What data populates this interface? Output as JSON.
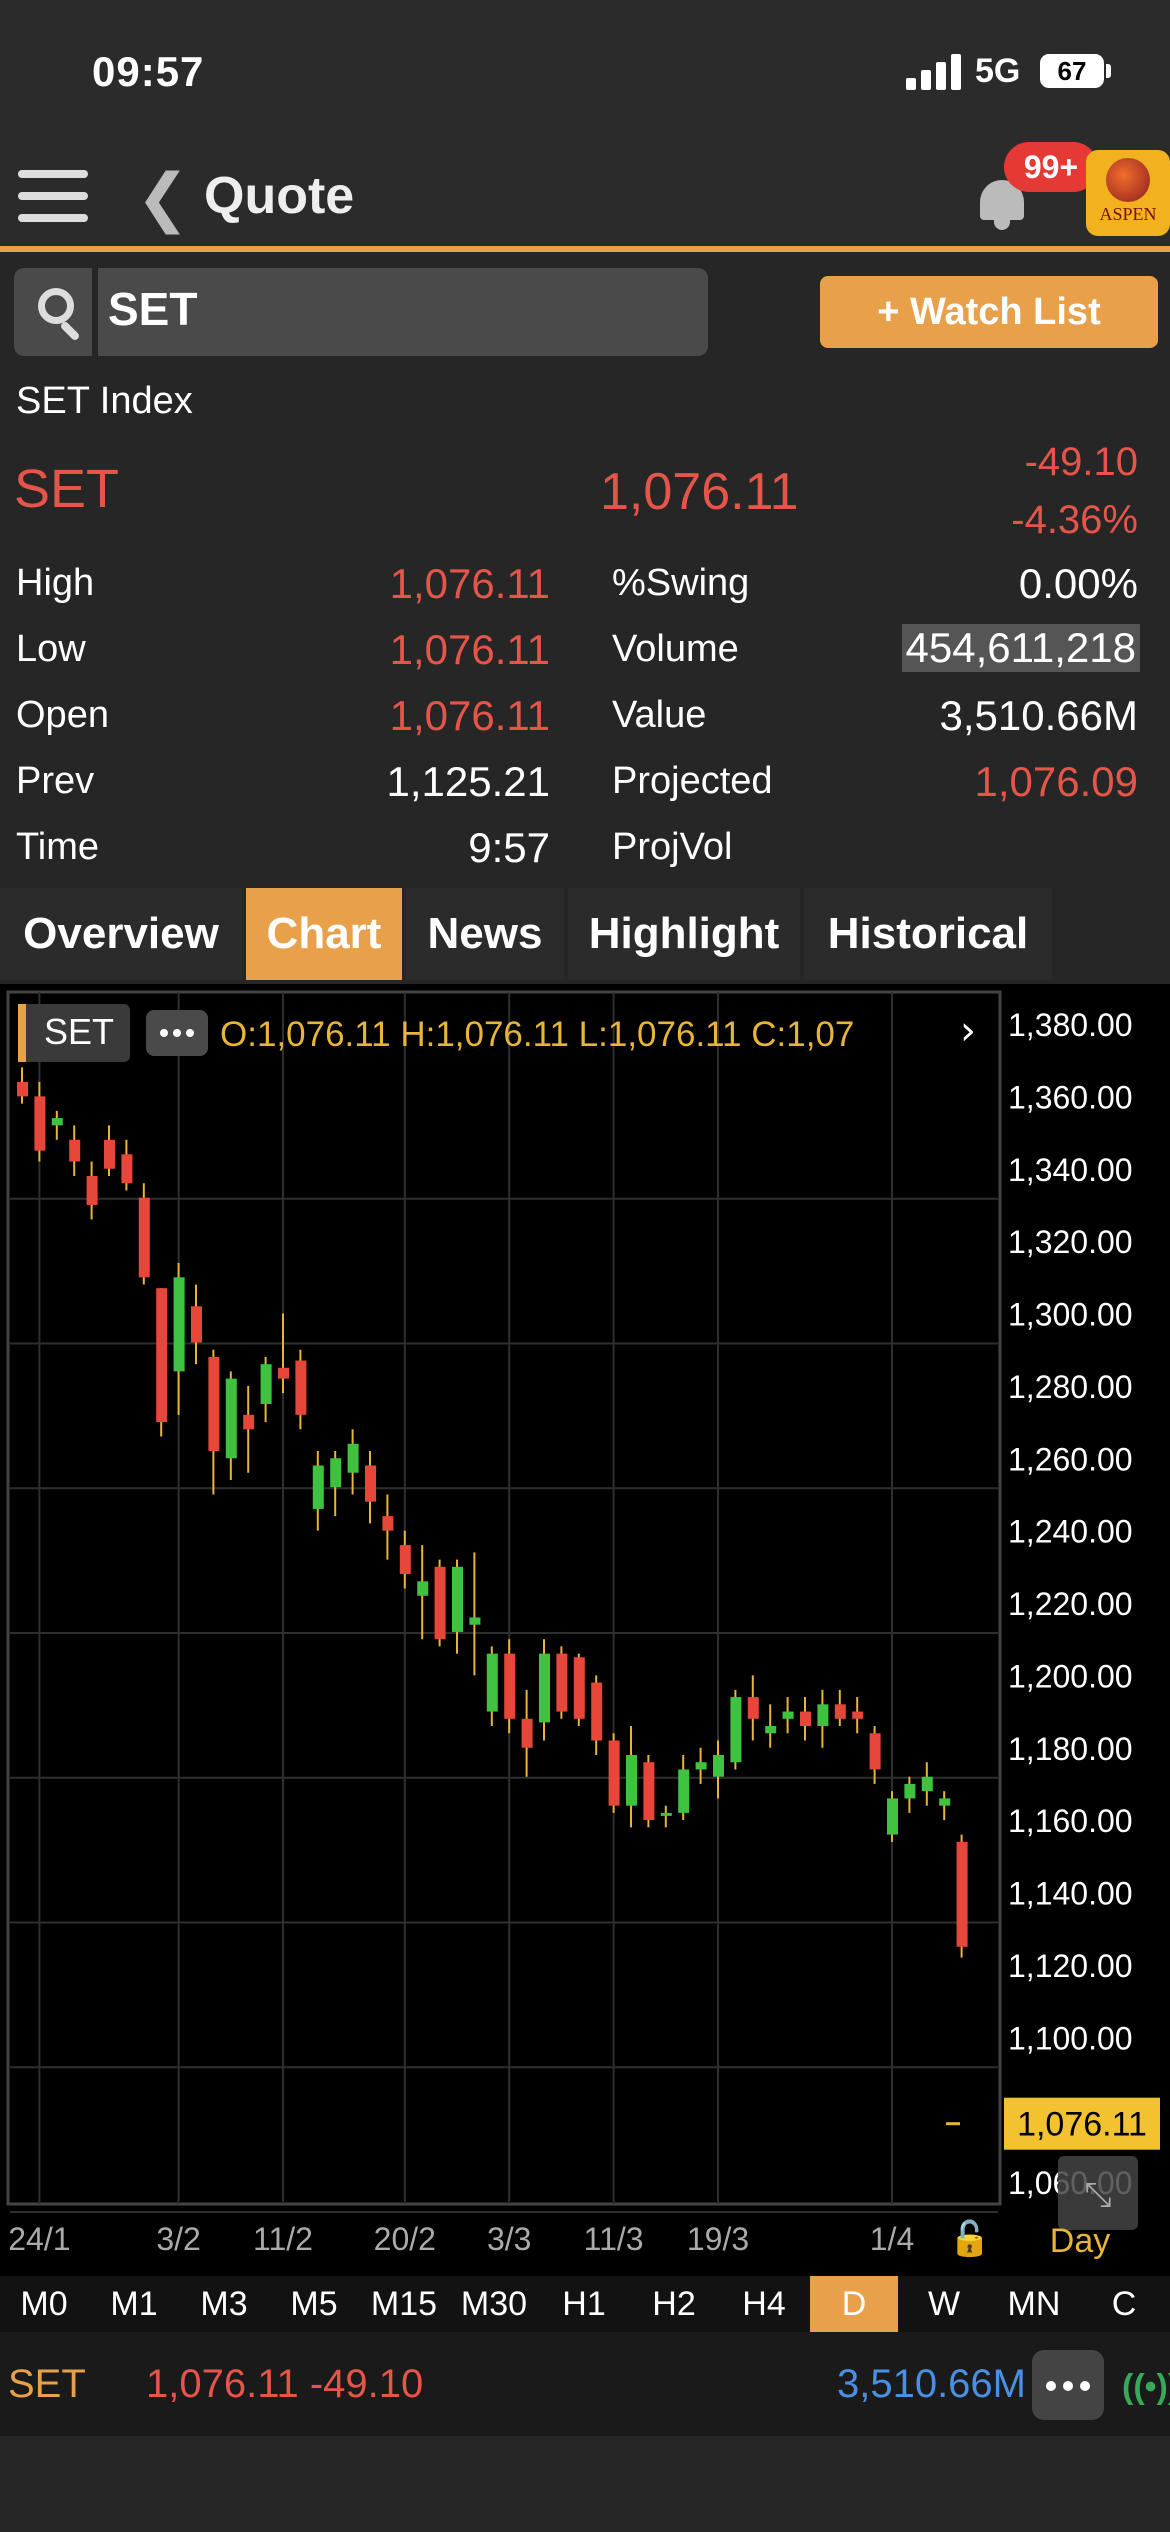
{
  "status_bar": {
    "time": "09:57",
    "network": "5G",
    "battery": "67"
  },
  "nav": {
    "title": "Quote",
    "notification_badge": "99+",
    "logo_text": "ASPEN"
  },
  "search": {
    "value": "SET"
  },
  "watchlist_button": "+ Watch List",
  "quote": {
    "index_name": "SET Index",
    "symbol": "SET",
    "last": "1,076.11",
    "change": "-49.10",
    "change_pct": "-4.36%"
  },
  "stats": {
    "high": {
      "label": "High",
      "value": "1,076.11"
    },
    "low": {
      "label": "Low",
      "value": "1,076.11"
    },
    "open": {
      "label": "Open",
      "value": "1,076.11"
    },
    "prev": {
      "label": "Prev",
      "value": "1,125.21"
    },
    "time": {
      "label": "Time",
      "value": "9:57"
    },
    "swing": {
      "label": "%Swing",
      "value": "0.00%"
    },
    "volume": {
      "label": "Volume",
      "value": "454,611,218"
    },
    "value": {
      "label": "Value",
      "value": "3,510.66M"
    },
    "projected": {
      "label": "Projected",
      "value": "1,076.09"
    },
    "projvol": {
      "label": "ProjVol",
      "value": ""
    }
  },
  "tabs": [
    "Overview",
    "Chart",
    "News",
    "Highlight",
    "Historical"
  ],
  "active_tab": "Chart",
  "chart_data": {
    "type": "candlestick",
    "symbol_label": "SET",
    "ohlc_header": "O:1,076.11  H:1,076.11  L:1,076.11  C:1,07",
    "y_ticks": [
      "1,380.00",
      "1,360.00",
      "1,340.00",
      "1,320.00",
      "1,300.00",
      "1,280.00",
      "1,260.00",
      "1,240.00",
      "1,220.00",
      "1,200.00",
      "1,180.00",
      "1,160.00",
      "1,140.00",
      "1,120.00",
      "1,100.00",
      "1,080.00",
      "1,060.00"
    ],
    "ylim": [
      1060,
      1380
    ],
    "x_labels": [
      {
        "label": "24/1",
        "index": 1
      },
      {
        "label": "3/2",
        "index": 9
      },
      {
        "label": "11/2",
        "index": 15
      },
      {
        "label": "20/2",
        "index": 22
      },
      {
        "label": "3/3",
        "index": 28
      },
      {
        "label": "11/3",
        "index": 34
      },
      {
        "label": "19/3",
        "index": 40
      },
      {
        "label": "1/4",
        "index": 50
      }
    ],
    "current_price_label": "1,076.11",
    "current_price": 1076.11,
    "period_label": "Day",
    "colors": {
      "up": "#3fc23f",
      "down": "#e6473a",
      "wick": "#e8b43a",
      "grid": "#2f2f2f"
    },
    "candles": [
      [
        1364,
        1368,
        1358,
        1360
      ],
      [
        1360,
        1364,
        1342,
        1345
      ],
      [
        1352,
        1356,
        1348,
        1354
      ],
      [
        1348,
        1352,
        1338,
        1342
      ],
      [
        1338,
        1342,
        1326,
        1330
      ],
      [
        1348,
        1352,
        1338,
        1340
      ],
      [
        1344,
        1348,
        1334,
        1336
      ],
      [
        1332,
        1336,
        1308,
        1310
      ],
      [
        1307,
        1307,
        1266,
        1270
      ],
      [
        1284,
        1314,
        1272,
        1310
      ],
      [
        1302,
        1308,
        1286,
        1292
      ],
      [
        1288,
        1290,
        1250,
        1262
      ],
      [
        1260,
        1284,
        1254,
        1282
      ],
      [
        1272,
        1280,
        1256,
        1268
      ],
      [
        1275,
        1288,
        1270,
        1286
      ],
      [
        1285,
        1300,
        1278,
        1282
      ],
      [
        1287,
        1290,
        1268,
        1272
      ],
      [
        1246,
        1262,
        1240,
        1258
      ],
      [
        1252,
        1262,
        1244,
        1260
      ],
      [
        1256,
        1268,
        1250,
        1264
      ],
      [
        1258,
        1262,
        1242,
        1248
      ],
      [
        1244,
        1250,
        1232,
        1240
      ],
      [
        1236,
        1240,
        1224,
        1228
      ],
      [
        1222,
        1236,
        1210,
        1226
      ],
      [
        1230,
        1232,
        1208,
        1210
      ],
      [
        1212,
        1232,
        1206,
        1230
      ],
      [
        1214,
        1234,
        1200,
        1216
      ],
      [
        1190,
        1208,
        1186,
        1206
      ],
      [
        1206,
        1210,
        1184,
        1188
      ],
      [
        1188,
        1196,
        1172,
        1180
      ],
      [
        1187,
        1210,
        1182,
        1206
      ],
      [
        1206,
        1208,
        1188,
        1190
      ],
      [
        1205,
        1206,
        1186,
        1188
      ],
      [
        1198,
        1200,
        1178,
        1182
      ],
      [
        1182,
        1184,
        1162,
        1164
      ],
      [
        1164,
        1186,
        1158,
        1178
      ],
      [
        1176,
        1178,
        1158,
        1160
      ],
      [
        1162,
        1164,
        1158,
        1162
      ],
      [
        1162,
        1178,
        1160,
        1174
      ],
      [
        1174,
        1180,
        1170,
        1176
      ],
      [
        1172,
        1182,
        1166,
        1178
      ],
      [
        1176,
        1196,
        1174,
        1194
      ],
      [
        1194,
        1200,
        1182,
        1188
      ],
      [
        1184,
        1192,
        1180,
        1186
      ],
      [
        1188,
        1194,
        1184,
        1190
      ],
      [
        1190,
        1194,
        1182,
        1186
      ],
      [
        1186,
        1196,
        1180,
        1192
      ],
      [
        1192,
        1196,
        1186,
        1188
      ],
      [
        1190,
        1194,
        1184,
        1188
      ],
      [
        1184,
        1186,
        1170,
        1174
      ],
      [
        1156,
        1168,
        1154,
        1166
      ],
      [
        1166,
        1172,
        1162,
        1170
      ],
      [
        1168,
        1176,
        1164,
        1172
      ],
      [
        1164,
        1168,
        1160,
        1166
      ],
      [
        1154,
        1156,
        1122,
        1125
      ]
    ]
  },
  "timeframes": [
    "M0",
    "M1",
    "M3",
    "M5",
    "M15",
    "M30",
    "H1",
    "H2",
    "H4",
    "D",
    "W",
    "MN",
    "C"
  ],
  "active_timeframe": "D",
  "ticker": {
    "symbol": "SET",
    "price_change": "1,076.11 -49.10",
    "value": "3,510.66M"
  }
}
